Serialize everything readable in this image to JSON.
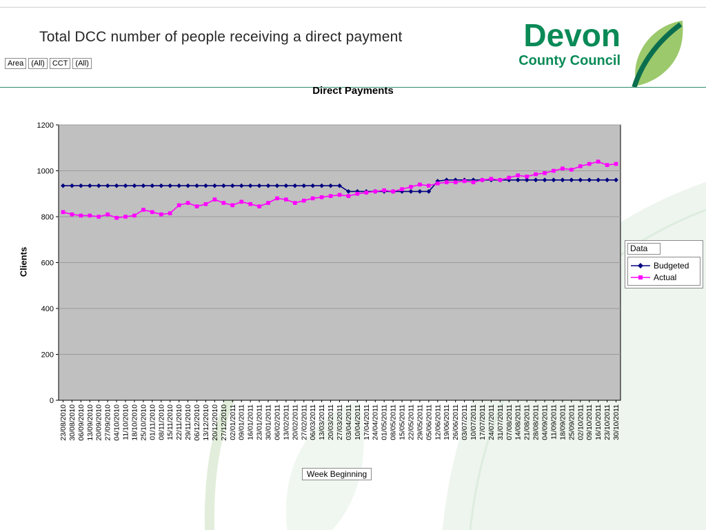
{
  "page": {
    "title": "Total DCC number of people receiving a direct payment"
  },
  "filters": [
    {
      "field": "Area",
      "value": "(All)"
    },
    {
      "field": "CCT",
      "value": "(All)"
    }
  ],
  "logo": {
    "line1": "Devon",
    "line2": "County Council",
    "brand_green": "#0a8a57",
    "leaf_light": "#9cc96b",
    "leaf_dark": "#0b6e4f"
  },
  "colors": {
    "header_rule": "#2e8b67",
    "plot_background": "#c0c0c0",
    "gridline": "#9a9a9a",
    "budgeted": "#000080",
    "actual": "#ff00ff"
  },
  "chart_data": {
    "type": "line",
    "title": "Direct Payments",
    "xlabel": "Week Beginning",
    "ylabel": "Clients",
    "ylim": [
      0,
      1200
    ],
    "ytick_interval": 200,
    "grid": true,
    "plot_bg": "#c0c0c0",
    "grid_color": "#9a9a9a",
    "legend_title": "Data",
    "legend_position": "right",
    "categories": [
      "23/08/2010",
      "30/08/2010",
      "06/09/2010",
      "13/09/2010",
      "20/09/2010",
      "27/09/2010",
      "04/10/2010",
      "11/10/2010",
      "18/10/2010",
      "25/10/2010",
      "01/11/2010",
      "08/11/2010",
      "15/11/2010",
      "22/11/2010",
      "29/11/2010",
      "06/12/2010",
      "13/12/2010",
      "20/12/2010",
      "27/12/2010",
      "02/01/2011",
      "09/01/2011",
      "16/01/2011",
      "23/01/2011",
      "30/01/2011",
      "06/02/2011",
      "13/02/2011",
      "20/02/2011",
      "27/02/2011",
      "06/03/2011",
      "13/03/2011",
      "20/03/2011",
      "27/03/2011",
      "03/04/2011",
      "10/04/2011",
      "17/04/2011",
      "24/04/2011",
      "01/05/2011",
      "08/05/2011",
      "15/05/2011",
      "22/05/2011",
      "29/05/2011",
      "05/06/2011",
      "12/06/2011",
      "19/06/2011",
      "26/06/2011",
      "03/07/2011",
      "10/07/2011",
      "17/07/2011",
      "24/07/2011",
      "31/07/2011",
      "07/08/2011",
      "14/08/2011",
      "21/08/2011",
      "28/08/2011",
      "04/09/2011",
      "11/09/2011",
      "18/09/2011",
      "25/09/2011",
      "02/10/2011",
      "09/10/2011",
      "16/10/2011",
      "23/10/2011",
      "30/10/2011"
    ],
    "series": [
      {
        "name": "Budgeted",
        "color": "#000080",
        "marker": "diamond",
        "values": [
          935,
          935,
          935,
          935,
          935,
          935,
          935,
          935,
          935,
          935,
          935,
          935,
          935,
          935,
          935,
          935,
          935,
          935,
          935,
          935,
          935,
          935,
          935,
          935,
          935,
          935,
          935,
          935,
          935,
          935,
          935,
          935,
          910,
          910,
          910,
          910,
          910,
          910,
          910,
          910,
          910,
          910,
          955,
          960,
          960,
          960,
          960,
          960,
          960,
          960,
          960,
          960,
          960,
          960,
          960,
          960,
          960,
          960,
          960,
          960,
          960,
          960,
          960
        ]
      },
      {
        "name": "Actual",
        "color": "#ff00ff",
        "marker": "square",
        "values": [
          820,
          810,
          805,
          805,
          800,
          810,
          795,
          800,
          805,
          830,
          820,
          810,
          815,
          850,
          860,
          845,
          855,
          875,
          860,
          850,
          865,
          855,
          845,
          860,
          880,
          875,
          860,
          870,
          880,
          885,
          890,
          895,
          890,
          900,
          905,
          910,
          915,
          910,
          920,
          930,
          940,
          935,
          945,
          950,
          950,
          955,
          950,
          960,
          965,
          960,
          970,
          980,
          975,
          985,
          990,
          1000,
          1010,
          1005,
          1020,
          1030,
          1040,
          1025,
          1030
        ]
      }
    ]
  }
}
